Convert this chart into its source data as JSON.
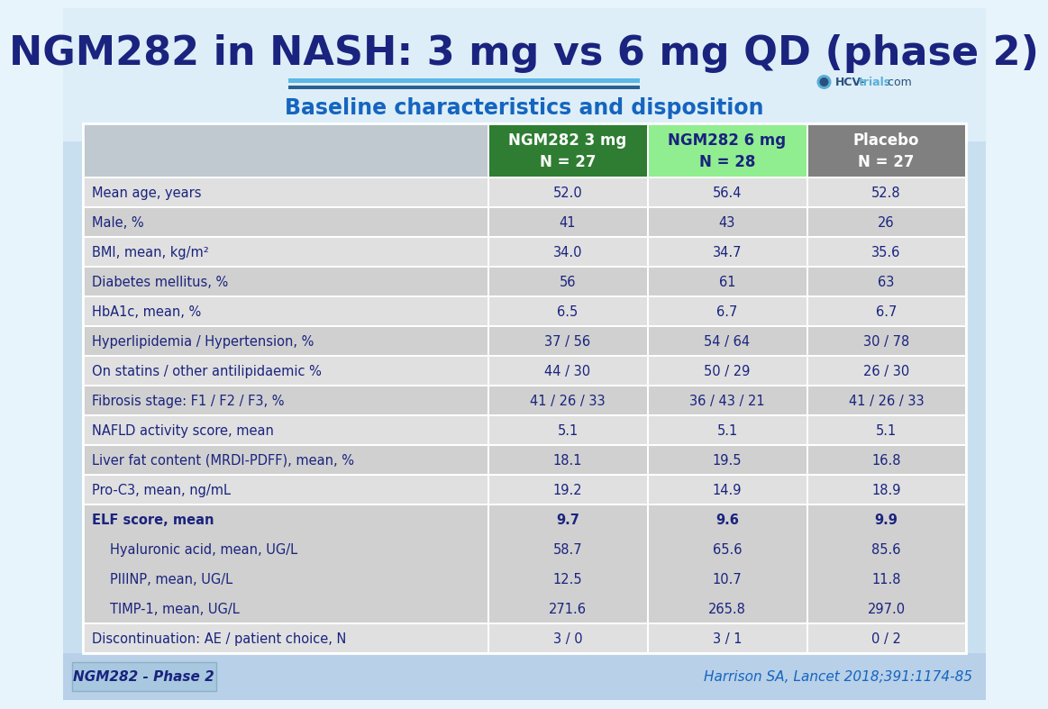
{
  "title": "NGM282 in NASH: 3 mg vs 6 mg QD (phase 2)",
  "subtitle": "Baseline characteristics and disposition",
  "bg_top_color": "#e8f4fc",
  "bg_bottom_color": "#c5dff0",
  "title_color": "#1a237e",
  "subtitle_color": "#1565c0",
  "col_headers": [
    "NGM282 3 mg\nN = 27",
    "NGM282 6 mg\nN = 28",
    "Placebo\nN = 27"
  ],
  "col_header_colors": [
    "#2e7d32",
    "#90ee90",
    "#808080"
  ],
  "col_header_text_colors": [
    "#ffffff",
    "#1a237e",
    "#ffffff"
  ],
  "rows": [
    {
      "label": "Mean age, years",
      "values": [
        "52.0",
        "56.4",
        "52.8"
      ],
      "bold": false,
      "shaded": false
    },
    {
      "label": "Male, %",
      "values": [
        "41",
        "43",
        "26"
      ],
      "bold": false,
      "shaded": true
    },
    {
      "label": "BMI, mean, kg/m²",
      "values": [
        "34.0",
        "34.7",
        "35.6"
      ],
      "bold": false,
      "shaded": false
    },
    {
      "label": "Diabetes mellitus, %",
      "values": [
        "56",
        "61",
        "63"
      ],
      "bold": false,
      "shaded": true
    },
    {
      "label": "HbA1c, mean, %",
      "values": [
        "6.5",
        "6.7",
        "6.7"
      ],
      "bold": false,
      "shaded": false
    },
    {
      "label": "Hyperlipidemia / Hypertension, %",
      "values": [
        "37 / 56",
        "54 / 64",
        "30 / 78"
      ],
      "bold": false,
      "shaded": true
    },
    {
      "label": "On statins / other antilipidaemic %",
      "values": [
        "44 / 30",
        "50 / 29",
        "26 / 30"
      ],
      "bold": false,
      "shaded": false
    },
    {
      "label": "Fibrosis stage: F1 / F2 / F3, %",
      "values": [
        "41 / 26 / 33",
        "36 / 43 / 21",
        "41 / 26 / 33"
      ],
      "bold": false,
      "shaded": true
    },
    {
      "label": "NAFLD activity score, mean",
      "values": [
        "5.1",
        "5.1",
        "5.1"
      ],
      "bold": false,
      "shaded": false
    },
    {
      "label": "Liver fat content (MRDI-PDFF), mean, %",
      "values": [
        "18.1",
        "19.5",
        "16.8"
      ],
      "bold": false,
      "shaded": true
    },
    {
      "label": "Pro-C3, mean, ng/mL",
      "values": [
        "19.2",
        "14.9",
        "18.9"
      ],
      "bold": false,
      "shaded": false
    },
    {
      "label": "ELF score, mean\n    Hyaluronic acid, mean, UG/L\n    PIIINP, mean, UG/L\n    TIMP-1, mean, UG/L",
      "values": [
        "9.7\n58.7\n12.5\n271.6",
        "9.6\n65.6\n10.7\n265.8",
        "9.9\n85.6\n11.8\n297.0"
      ],
      "bold": true,
      "shaded": true,
      "multirow": 4
    },
    {
      "label": "Discontinuation: AE / patient choice, N",
      "values": [
        "3 / 0",
        "3 / 1",
        "0 / 2"
      ],
      "bold": false,
      "shaded": false
    }
  ],
  "footer_left": "NGM282 - Phase 2",
  "footer_right": "Harrison SA, Lancet 2018;391:1174-85",
  "footer_left_color": "#1a237e",
  "footer_right_color": "#1565c0",
  "table_text_color": "#1a237e",
  "shaded_row_color": "#d0d0d0",
  "unshaded_row_color": "#e0e0e0",
  "border_color": "#ffffff",
  "header_label_bg": "#c0c8d0"
}
